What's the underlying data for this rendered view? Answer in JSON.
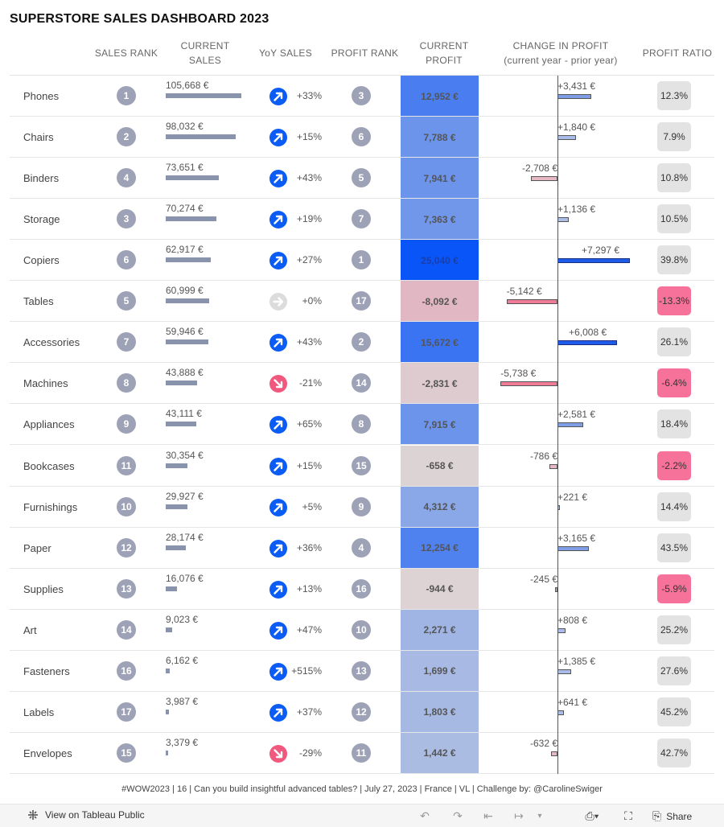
{
  "title": "SUPERSTORE SALES DASHBOARD 2023",
  "headers": {
    "sales_rank": "SALES RANK",
    "current_sales_1": "CURRENT",
    "current_sales_2": "SALES",
    "yoy_sales": "YoY SALES",
    "profit_rank": "PROFIT RANK",
    "current_profit_1": "CURRENT",
    "current_profit_2": "PROFIT",
    "change_profit_1": "CHANGE IN PROFIT",
    "change_profit_2": "(current year - prior year)",
    "profit_ratio": "PROFIT RATIO"
  },
  "colors": {
    "rank_circle": "#9ea2b6",
    "sales_bar": "#8a93ac",
    "yoy_up": "#0a5cf5",
    "yoy_down": "#f0587d",
    "yoy_flat": "#dcdcdc",
    "negative_ratio": "#f7729a",
    "neutral_ratio": "#e3e3e3"
  },
  "rows": [
    {
      "category": "Phones",
      "sales_rank": "1",
      "sales_value": 105668,
      "sales_label": "105,668 €",
      "yoy": "+33%",
      "yoy_dir": "up",
      "profit_rank": "3",
      "profit": 12952,
      "profit_label": "12,952 €",
      "change": 3431,
      "change_label": "+3,431 €",
      "ratio": "12.3%"
    },
    {
      "category": "Chairs",
      "sales_rank": "2",
      "sales_value": 98032,
      "sales_label": "98,032 €",
      "yoy": "+15%",
      "yoy_dir": "up",
      "profit_rank": "6",
      "profit": 7788,
      "profit_label": "7,788 €",
      "change": 1840,
      "change_label": "+1,840 €",
      "ratio": "7.9%"
    },
    {
      "category": "Binders",
      "sales_rank": "4",
      "sales_value": 73651,
      "sales_label": "73,651 €",
      "yoy": "+43%",
      "yoy_dir": "up",
      "profit_rank": "5",
      "profit": 7941,
      "profit_label": "7,941 €",
      "change": -2708,
      "change_label": "-2,708 €",
      "ratio": "10.8%"
    },
    {
      "category": "Storage",
      "sales_rank": "3",
      "sales_value": 70274,
      "sales_label": "70,274 €",
      "yoy": "+19%",
      "yoy_dir": "up",
      "profit_rank": "7",
      "profit": 7363,
      "profit_label": "7,363 €",
      "change": 1136,
      "change_label": "+1,136 €",
      "ratio": "10.5%"
    },
    {
      "category": "Copiers",
      "sales_rank": "6",
      "sales_value": 62917,
      "sales_label": "62,917 €",
      "yoy": "+27%",
      "yoy_dir": "up",
      "profit_rank": "1",
      "profit": 25040,
      "profit_label": "25,040 €",
      "change": 7297,
      "change_label": "+7,297 €",
      "ratio": "39.8%"
    },
    {
      "category": "Tables",
      "sales_rank": "5",
      "sales_value": 60999,
      "sales_label": "60,999 €",
      "yoy": "+0%",
      "yoy_dir": "flat",
      "profit_rank": "17",
      "profit": -8092,
      "profit_label": "-8,092 €",
      "change": -5142,
      "change_label": "-5,142 €",
      "ratio": "-13.3%"
    },
    {
      "category": "Accessories",
      "sales_rank": "7",
      "sales_value": 59946,
      "sales_label": "59,946 €",
      "yoy": "+43%",
      "yoy_dir": "up",
      "profit_rank": "2",
      "profit": 15672,
      "profit_label": "15,672 €",
      "change": 6008,
      "change_label": "+6,008 €",
      "ratio": "26.1%"
    },
    {
      "category": "Machines",
      "sales_rank": "8",
      "sales_value": 43888,
      "sales_label": "43,888 €",
      "yoy": "-21%",
      "yoy_dir": "down",
      "profit_rank": "14",
      "profit": -2831,
      "profit_label": "-2,831 €",
      "change": -5738,
      "change_label": "-5,738 €",
      "ratio": "-6.4%"
    },
    {
      "category": "Appliances",
      "sales_rank": "9",
      "sales_value": 43111,
      "sales_label": "43,111 €",
      "yoy": "+65%",
      "yoy_dir": "up",
      "profit_rank": "8",
      "profit": 7915,
      "profit_label": "7,915 €",
      "change": 2581,
      "change_label": "+2,581 €",
      "ratio": "18.4%"
    },
    {
      "category": "Bookcases",
      "sales_rank": "11",
      "sales_value": 30354,
      "sales_label": "30,354 €",
      "yoy": "+15%",
      "yoy_dir": "up",
      "profit_rank": "15",
      "profit": -658,
      "profit_label": "-658 €",
      "change": -786,
      "change_label": "-786 €",
      "ratio": "-2.2%"
    },
    {
      "category": "Furnishings",
      "sales_rank": "10",
      "sales_value": 29927,
      "sales_label": "29,927 €",
      "yoy": "+5%",
      "yoy_dir": "up",
      "profit_rank": "9",
      "profit": 4312,
      "profit_label": "4,312 €",
      "change": 221,
      "change_label": "+221 €",
      "ratio": "14.4%"
    },
    {
      "category": "Paper",
      "sales_rank": "12",
      "sales_value": 28174,
      "sales_label": "28,174 €",
      "yoy": "+36%",
      "yoy_dir": "up",
      "profit_rank": "4",
      "profit": 12254,
      "profit_label": "12,254 €",
      "change": 3165,
      "change_label": "+3,165 €",
      "ratio": "43.5%"
    },
    {
      "category": "Supplies",
      "sales_rank": "13",
      "sales_value": 16076,
      "sales_label": "16,076 €",
      "yoy": "+13%",
      "yoy_dir": "up",
      "profit_rank": "16",
      "profit": -944,
      "profit_label": "-944 €",
      "change": -245,
      "change_label": "-245 €",
      "ratio": "-5.9%"
    },
    {
      "category": "Art",
      "sales_rank": "14",
      "sales_value": 9023,
      "sales_label": "9,023 €",
      "yoy": "+47%",
      "yoy_dir": "up",
      "profit_rank": "10",
      "profit": 2271,
      "profit_label": "2,271 €",
      "change": 808,
      "change_label": "+808 €",
      "ratio": "25.2%"
    },
    {
      "category": "Fasteners",
      "sales_rank": "16",
      "sales_value": 6162,
      "sales_label": "6,162 €",
      "yoy": "+515%",
      "yoy_dir": "up",
      "profit_rank": "13",
      "profit": 1699,
      "profit_label": "1,699 €",
      "change": 1385,
      "change_label": "+1,385 €",
      "ratio": "27.6%"
    },
    {
      "category": "Labels",
      "sales_rank": "17",
      "sales_value": 3987,
      "sales_label": "3,987 €",
      "yoy": "+37%",
      "yoy_dir": "up",
      "profit_rank": "12",
      "profit": 1803,
      "profit_label": "1,803 €",
      "change": 641,
      "change_label": "+641 €",
      "ratio": "45.2%"
    },
    {
      "category": "Envelopes",
      "sales_rank": "15",
      "sales_value": 3379,
      "sales_label": "3,379 €",
      "yoy": "-29%",
      "yoy_dir": "down",
      "profit_rank": "11",
      "profit": 1442,
      "profit_label": "1,442 €",
      "change": -632,
      "change_label": "-632 €",
      "ratio": "42.7%"
    }
  ],
  "footer": "#WOW2023 | 16 | Can you build insightful advanced tables? | July 27, 2023 | France | VL | Challenge by: @CarolineSwiger",
  "toolbar": {
    "view_label": "View on Tableau Public",
    "share_label": "Share",
    "icons": [
      "undo-icon",
      "redo-icon",
      "revert-icon",
      "pause-icon",
      "download-icon",
      "fullscreen-icon",
      "share-icon"
    ]
  }
}
